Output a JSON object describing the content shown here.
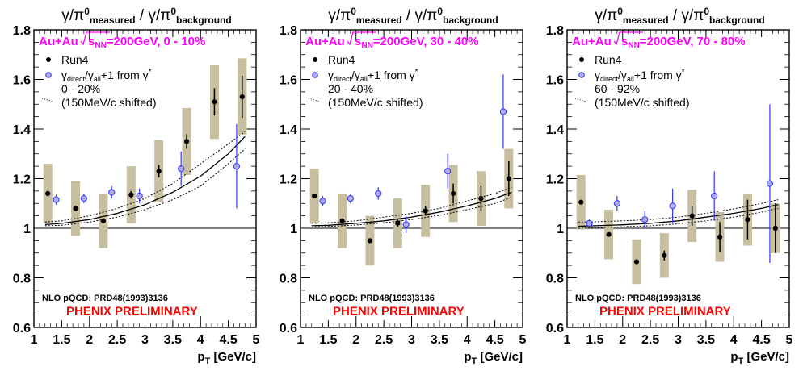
{
  "figure_title": {
    "numerator": "γ/π",
    "numerator_sup": "0",
    "numerator_sub": "measured",
    "divider": "/",
    "denominator": "γ/π",
    "denominator_sup": "0",
    "denominator_sub": "background"
  },
  "x_axis_label": "p",
  "x_axis_label_sub": "T",
  "x_axis_label_unit": "[GeV/c]",
  "legend": {
    "run4": "Run4",
    "model_pre": "γ",
    "model_sub1": "direct",
    "model_mid": "/γ",
    "model_sub2": "all",
    "model_post": "+1 from γ",
    "model_sup": "*",
    "shifted": "(150MeV/c shifted)"
  },
  "nlo_text": "NLO pQCD: PRD48(1993)3136",
  "preliminary_text": "PHENIX PRELIMINARY",
  "colors": {
    "header": "#ff00ff",
    "preliminary": "#ff0000",
    "run4_marker": "#000000",
    "model_marker": "#3333ff",
    "model_fill": "#aaaaee",
    "sys_box": "#c8bea0"
  },
  "chart_data": [
    {
      "type": "scatter",
      "header_system": "Au+Au",
      "header_energy": "s",
      "header_energy_sub": "NN",
      "header_rest": "=200GeV, 0 - 10%",
      "model_centrality": "0 - 20%",
      "xlim": [
        1,
        5
      ],
      "ylim": [
        0.6,
        1.8
      ],
      "x_ticks": [
        1,
        1.5,
        2,
        2.5,
        3,
        3.5,
        4,
        4.5,
        5
      ],
      "y_ticks": [
        0.6,
        0.8,
        1,
        1.2,
        1.4,
        1.6,
        1.8
      ],
      "reference_line": 1.0,
      "series": [
        {
          "name": "Run4",
          "x": [
            1.25,
            1.75,
            2.25,
            2.75,
            3.25,
            3.75,
            4.25,
            4.75
          ],
          "y": [
            1.14,
            1.08,
            1.03,
            1.135,
            1.23,
            1.35,
            1.51,
            1.53
          ],
          "err": [
            0.0,
            0.0,
            0.0,
            0.015,
            0.025,
            0.03,
            0.055,
            0.085
          ],
          "sys": [
            0.12,
            0.11,
            0.11,
            0.115,
            0.125,
            0.135,
            0.15,
            0.155
          ]
        },
        {
          "name": "γdirect/γall+1 from γ*",
          "x": [
            1.4,
            1.9,
            2.4,
            2.9,
            3.65,
            4.65
          ],
          "y": [
            1.115,
            1.12,
            1.145,
            1.13,
            1.24,
            1.25
          ],
          "err": [
            0.02,
            0.02,
            0.025,
            0.03,
            0.07,
            0.17
          ]
        }
      ],
      "nlo_curve": {
        "x": [
          1.2,
          1.5,
          2.0,
          2.5,
          3.0,
          3.5,
          4.0,
          4.5,
          4.8
        ],
        "y": [
          1.015,
          1.02,
          1.035,
          1.06,
          1.095,
          1.145,
          1.21,
          1.3,
          1.37
        ],
        "y_upper": [
          1.025,
          1.03,
          1.05,
          1.08,
          1.12,
          1.18,
          1.26,
          1.34,
          1.39
        ],
        "y_lower": [
          1.01,
          1.012,
          1.025,
          1.045,
          1.075,
          1.115,
          1.17,
          1.26,
          1.32
        ]
      }
    },
    {
      "type": "scatter",
      "header_system": "Au+Au",
      "header_energy": "s",
      "header_energy_sub": "NN",
      "header_rest": "=200GeV, 30 - 40%",
      "model_centrality": "20 - 40%",
      "xlim": [
        1,
        5
      ],
      "ylim": [
        0.6,
        1.8
      ],
      "x_ticks": [
        1,
        1.5,
        2,
        2.5,
        3,
        3.5,
        4,
        4.5,
        5
      ],
      "y_ticks": [
        0.6,
        0.8,
        1,
        1.2,
        1.4,
        1.6,
        1.8
      ],
      "reference_line": 1.0,
      "series": [
        {
          "name": "Run4",
          "x": [
            1.25,
            1.75,
            2.25,
            2.75,
            3.25,
            3.75,
            4.25,
            4.75
          ],
          "y": [
            1.13,
            1.03,
            0.95,
            1.02,
            1.07,
            1.14,
            1.12,
            1.2
          ],
          "err": [
            0.0,
            0.0,
            0.0,
            0.015,
            0.02,
            0.04,
            0.05,
            0.07
          ],
          "sys": [
            0.11,
            0.11,
            0.1,
            0.1,
            0.105,
            0.115,
            0.11,
            0.12
          ]
        },
        {
          "name": "γdirect/γall+1 from γ*",
          "x": [
            1.4,
            1.9,
            2.4,
            2.9,
            3.65,
            4.65
          ],
          "y": [
            1.11,
            1.12,
            1.14,
            1.015,
            1.23,
            1.47
          ],
          "err": [
            0.02,
            0.02,
            0.025,
            0.035,
            0.07,
            0.15
          ]
        }
      ],
      "nlo_curve": {
        "x": [
          1.2,
          1.5,
          2.0,
          2.5,
          3.0,
          3.5,
          4.0,
          4.5,
          4.8
        ],
        "y": [
          1.01,
          1.012,
          1.02,
          1.03,
          1.045,
          1.065,
          1.09,
          1.12,
          1.145
        ],
        "y_upper": [
          1.02,
          1.022,
          1.03,
          1.045,
          1.06,
          1.08,
          1.11,
          1.14,
          1.165
        ],
        "y_lower": [
          1.005,
          1.007,
          1.013,
          1.022,
          1.035,
          1.052,
          1.075,
          1.1,
          1.125
        ]
      }
    },
    {
      "type": "scatter",
      "header_system": "Au+Au",
      "header_energy": "s",
      "header_energy_sub": "NN",
      "header_rest": "=200GeV, 70 - 80%",
      "model_centrality": "60 - 92%",
      "xlim": [
        1,
        5
      ],
      "ylim": [
        0.6,
        1.8
      ],
      "x_ticks": [
        1,
        1.5,
        2,
        2.5,
        3,
        3.5,
        4,
        4.5,
        5
      ],
      "y_ticks": [
        0.6,
        0.8,
        1,
        1.2,
        1.4,
        1.6,
        1.8
      ],
      "reference_line": 1.0,
      "series": [
        {
          "name": "Run4",
          "x": [
            1.25,
            1.75,
            2.25,
            2.75,
            3.25,
            3.75,
            4.25,
            4.75
          ],
          "y": [
            1.105,
            0.975,
            0.865,
            0.89,
            1.05,
            0.965,
            1.035,
            1.0
          ],
          "err": [
            0.0,
            0.0,
            0.0,
            0.02,
            0.04,
            0.06,
            0.08,
            0.1
          ],
          "sys": [
            0.11,
            0.1,
            0.09,
            0.09,
            0.105,
            0.1,
            0.105,
            0.1
          ]
        },
        {
          "name": "γdirect/γall+1 from γ*",
          "x": [
            1.4,
            1.9,
            2.4,
            2.9,
            3.65,
            4.65
          ],
          "y": [
            1.02,
            1.1,
            1.035,
            1.09,
            1.13,
            1.18
          ],
          "err": [
            0.015,
            0.03,
            0.035,
            0.07,
            0.1,
            0.32
          ]
        }
      ],
      "nlo_curve": {
        "x": [
          1.2,
          1.5,
          2.0,
          2.5,
          3.0,
          3.5,
          4.0,
          4.5,
          4.8
        ],
        "y": [
          1.008,
          1.01,
          1.014,
          1.02,
          1.03,
          1.045,
          1.06,
          1.08,
          1.095
        ],
        "y_upper": [
          1.025,
          1.026,
          1.03,
          1.035,
          1.045,
          1.06,
          1.078,
          1.1,
          1.115
        ],
        "y_lower": [
          1.0,
          1.002,
          1.006,
          1.01,
          1.018,
          1.03,
          1.045,
          1.065,
          1.08
        ]
      }
    }
  ]
}
